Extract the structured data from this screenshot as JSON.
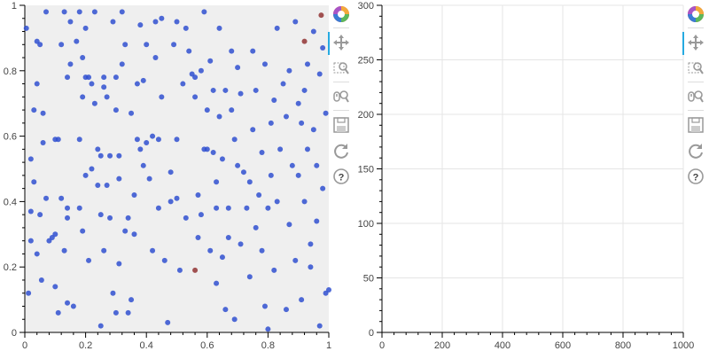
{
  "chart_data": [
    {
      "type": "scatter",
      "xlim": [
        0,
        1
      ],
      "ylim": [
        0,
        1
      ],
      "x_ticks": [
        "0",
        "0.2",
        "0.4",
        "0.6",
        "0.8",
        "1"
      ],
      "y_ticks": [
        "0",
        "0.2",
        "0.4",
        "0.6",
        "0.8",
        "1"
      ],
      "grid": false,
      "background": "#efefef",
      "point_color": "#3050d0",
      "selected_color": "#a05050",
      "points": [
        [
          0.005,
          0.93
        ],
        [
          0.012,
          0.12
        ],
        [
          0.02,
          0.53
        ],
        [
          0.02,
          0.37
        ],
        [
          0.02,
          0.28
        ],
        [
          0.03,
          0.68
        ],
        [
          0.03,
          0.46
        ],
        [
          0.04,
          0.76
        ],
        [
          0.04,
          0.24
        ],
        [
          0.04,
          0.89
        ],
        [
          0.05,
          0.88
        ],
        [
          0.05,
          0.36
        ],
        [
          0.055,
          0.16
        ],
        [
          0.06,
          0.67
        ],
        [
          0.06,
          0.58
        ],
        [
          0.07,
          0.98
        ],
        [
          0.07,
          0.41
        ],
        [
          0.08,
          0.28
        ],
        [
          0.09,
          0.29
        ],
        [
          0.1,
          0.59
        ],
        [
          0.1,
          0.3
        ],
        [
          0.1,
          0.14
        ],
        [
          0.11,
          0.59
        ],
        [
          0.11,
          0.06
        ],
        [
          0.12,
          0.41
        ],
        [
          0.12,
          0.88
        ],
        [
          0.13,
          0.98
        ],
        [
          0.13,
          0.25
        ],
        [
          0.14,
          0.78
        ],
        [
          0.14,
          0.38
        ],
        [
          0.14,
          0.35
        ],
        [
          0.14,
          0.09
        ],
        [
          0.15,
          0.95
        ],
        [
          0.15,
          0.82
        ],
        [
          0.16,
          0.08
        ],
        [
          0.17,
          0.89
        ],
        [
          0.18,
          0.98
        ],
        [
          0.18,
          0.59
        ],
        [
          0.18,
          0.38
        ],
        [
          0.19,
          0.84
        ],
        [
          0.19,
          0.72
        ],
        [
          0.19,
          0.31
        ],
        [
          0.2,
          0.93
        ],
        [
          0.2,
          0.78
        ],
        [
          0.2,
          0.48
        ],
        [
          0.21,
          0.22
        ],
        [
          0.21,
          0.78
        ],
        [
          0.22,
          0.76
        ],
        [
          0.22,
          0.5
        ],
        [
          0.23,
          0.98
        ],
        [
          0.23,
          0.7
        ],
        [
          0.24,
          0.56
        ],
        [
          0.24,
          0.45
        ],
        [
          0.25,
          0.54
        ],
        [
          0.25,
          0.36
        ],
        [
          0.25,
          0.02
        ],
        [
          0.26,
          0.78
        ],
        [
          0.26,
          0.75
        ],
        [
          0.26,
          0.25
        ],
        [
          0.27,
          0.72
        ],
        [
          0.27,
          0.45
        ],
        [
          0.28,
          0.54
        ],
        [
          0.28,
          0.35
        ],
        [
          0.29,
          0.95
        ],
        [
          0.29,
          0.12
        ],
        [
          0.3,
          0.78
        ],
        [
          0.3,
          0.68
        ],
        [
          0.3,
          0.06
        ],
        [
          0.31,
          0.54
        ],
        [
          0.31,
          0.47
        ],
        [
          0.31,
          0.21
        ],
        [
          0.32,
          0.98
        ],
        [
          0.32,
          0.82
        ],
        [
          0.33,
          0.88
        ],
        [
          0.33,
          0.31
        ],
        [
          0.34,
          0.35
        ],
        [
          0.34,
          0.06
        ],
        [
          0.35,
          0.67
        ],
        [
          0.35,
          0.1
        ],
        [
          0.36,
          0.42
        ],
        [
          0.36,
          0.3
        ],
        [
          0.37,
          0.76
        ],
        [
          0.37,
          0.59
        ],
        [
          0.38,
          0.94
        ],
        [
          0.38,
          0.56
        ],
        [
          0.39,
          0.77
        ],
        [
          0.39,
          0.51
        ],
        [
          0.4,
          0.88
        ],
        [
          0.4,
          0.58
        ],
        [
          0.41,
          0.47
        ],
        [
          0.42,
          0.6
        ],
        [
          0.42,
          0.25
        ],
        [
          0.43,
          0.95
        ],
        [
          0.43,
          0.84
        ],
        [
          0.44,
          0.59
        ],
        [
          0.44,
          0.38
        ],
        [
          0.45,
          0.96
        ],
        [
          0.45,
          0.72
        ],
        [
          0.46,
          0.22
        ],
        [
          0.47,
          0.03
        ],
        [
          0.48,
          0.49
        ],
        [
          0.48,
          0.4
        ],
        [
          0.49,
          0.88
        ],
        [
          0.5,
          0.95
        ],
        [
          0.5,
          0.59
        ],
        [
          0.5,
          0.41
        ],
        [
          0.51,
          0.19
        ],
        [
          0.52,
          0.76
        ],
        [
          0.53,
          0.93
        ],
        [
          0.53,
          0.35
        ],
        [
          0.54,
          0.86
        ],
        [
          0.55,
          0.79
        ],
        [
          0.56,
          0.78
        ],
        [
          0.56,
          0.72
        ],
        [
          0.57,
          0.42
        ],
        [
          0.57,
          0.29
        ],
        [
          0.58,
          0.8
        ],
        [
          0.58,
          0.36
        ],
        [
          0.59,
          0.98
        ],
        [
          0.59,
          0.56
        ],
        [
          0.6,
          0.68
        ],
        [
          0.6,
          0.56
        ],
        [
          0.61,
          0.83
        ],
        [
          0.61,
          0.25
        ],
        [
          0.62,
          0.74
        ],
        [
          0.62,
          0.55
        ],
        [
          0.63,
          0.46
        ],
        [
          0.63,
          0.38
        ],
        [
          0.63,
          0.15
        ],
        [
          0.64,
          0.93
        ],
        [
          0.64,
          0.66
        ],
        [
          0.65,
          0.53
        ],
        [
          0.65,
          0.23
        ],
        [
          0.66,
          0.74
        ],
        [
          0.66,
          0.07
        ],
        [
          0.67,
          0.38
        ],
        [
          0.67,
          0.29
        ],
        [
          0.68,
          0.86
        ],
        [
          0.68,
          0.68
        ],
        [
          0.69,
          0.59
        ],
        [
          0.69,
          0.04
        ],
        [
          0.7,
          0.81
        ],
        [
          0.7,
          0.51
        ],
        [
          0.71,
          0.73
        ],
        [
          0.71,
          0.27
        ],
        [
          0.72,
          0.49
        ],
        [
          0.73,
          0.38
        ],
        [
          0.74,
          0.46
        ],
        [
          0.74,
          0.17
        ],
        [
          0.75,
          0.86
        ],
        [
          0.75,
          0.62
        ],
        [
          0.76,
          0.74
        ],
        [
          0.76,
          0.32
        ],
        [
          0.77,
          0.42
        ],
        [
          0.78,
          0.55
        ],
        [
          0.78,
          0.25
        ],
        [
          0.79,
          0.82
        ],
        [
          0.79,
          0.08
        ],
        [
          0.8,
          0.38
        ],
        [
          0.8,
          0.01
        ],
        [
          0.81,
          0.64
        ],
        [
          0.81,
          0.48
        ],
        [
          0.82,
          0.71
        ],
        [
          0.82,
          0.19
        ],
        [
          0.83,
          0.93
        ],
        [
          0.83,
          0.4
        ],
        [
          0.84,
          0.56
        ],
        [
          0.85,
          0.76
        ],
        [
          0.86,
          0.66
        ],
        [
          0.86,
          0.07
        ],
        [
          0.87,
          0.33
        ],
        [
          0.87,
          0.8
        ],
        [
          0.88,
          0.51
        ],
        [
          0.89,
          0.95
        ],
        [
          0.89,
          0.22
        ],
        [
          0.9,
          0.7
        ],
        [
          0.9,
          0.48
        ],
        [
          0.91,
          0.64
        ],
        [
          0.91,
          0.1
        ],
        [
          0.92,
          0.74
        ],
        [
          0.92,
          0.4
        ],
        [
          0.93,
          0.82
        ],
        [
          0.93,
          0.56
        ],
        [
          0.94,
          0.27
        ],
        [
          0.94,
          0.2
        ],
        [
          0.95,
          0.92
        ],
        [
          0.95,
          0.62
        ],
        [
          0.96,
          0.51
        ],
        [
          0.96,
          0.34
        ],
        [
          0.97,
          0.79
        ],
        [
          0.97,
          0.02
        ],
        [
          0.98,
          0.87
        ],
        [
          0.98,
          0.44
        ],
        [
          0.99,
          0.12
        ],
        [
          0.99,
          0.67
        ],
        [
          1.0,
          0.13
        ]
      ],
      "selected_points": [
        [
          0.56,
          0.19
        ],
        [
          0.92,
          0.89
        ],
        [
          0.975,
          0.97
        ]
      ]
    },
    {
      "type": "line",
      "xlim": [
        0,
        1000
      ],
      "ylim": [
        0,
        300
      ],
      "x_ticks": [
        "0",
        "200",
        "400",
        "600",
        "800",
        "1000"
      ],
      "y_ticks": [
        "0",
        "50",
        "100",
        "150",
        "200",
        "250",
        "300"
      ],
      "grid": true,
      "series": []
    }
  ],
  "toolbars": [
    {
      "tools": [
        "bokeh-logo-icon",
        "pan-icon",
        "box-zoom-icon",
        "wheel-zoom-icon",
        "save-icon",
        "reset-icon",
        "help-icon"
      ],
      "active": "pan-icon"
    },
    {
      "tools": [
        "bokeh-logo-icon",
        "pan-icon",
        "box-zoom-icon",
        "wheel-zoom-icon",
        "save-icon",
        "reset-icon",
        "help-icon"
      ],
      "active": "pan-icon"
    }
  ]
}
